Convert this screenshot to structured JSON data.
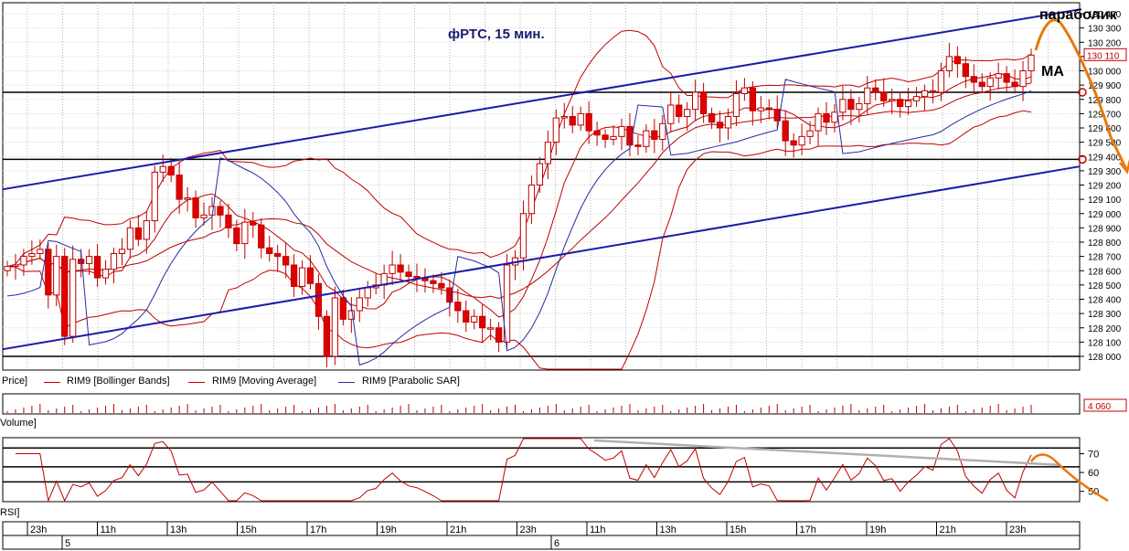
{
  "chart_data": [
    {
      "type": "candlestick",
      "title": "фРТС,  15 мин.",
      "annotations": [
        "параболик",
        "MA"
      ],
      "ylim": [
        127930,
        130450
      ],
      "y_ticks": [
        "130 400",
        "130 300",
        "130 200",
        "130 100",
        "130 000",
        "129 900",
        "129 800",
        "129 700",
        "129 600",
        "129 500",
        "129 400",
        "129 300",
        "129 200",
        "129 100",
        "129 000",
        "128 900",
        "128 800",
        "128 700",
        "128 600",
        "128 500",
        "128 400",
        "128 300",
        "128 200",
        "128 100",
        "128 000"
      ],
      "y_tick_values": [
        130400,
        130300,
        130200,
        130100,
        130000,
        129900,
        129800,
        129700,
        129600,
        129500,
        129400,
        129300,
        129200,
        129100,
        129000,
        128900,
        128800,
        128700,
        128600,
        128500,
        128400,
        128300,
        128200,
        128100,
        128000
      ],
      "last_price_label": "130 110",
      "last_price": 130110,
      "horizontal_levels": [
        129850,
        129380,
        128000
      ],
      "trend_channel": {
        "upper": [
          [
            0,
            129170
          ],
          [
            147,
            130430
          ]
        ],
        "lower": [
          [
            0,
            128050
          ],
          [
            147,
            129330
          ]
        ]
      },
      "legend": [
        "Price]",
        "RIM9 [Bollinger Bands]",
        "RIM9 [Moving Average]",
        "RIM9 [Parabolic SAR]"
      ],
      "colors": {
        "up": "#ffffff",
        "down": "#e00000",
        "bollinger": "#c00000",
        "ma": "#c00000",
        "sar": "#2a2aa0",
        "channel": "#1a1aa8",
        "forecast": "#e8780a"
      },
      "close": [
        128630,
        128640,
        128700,
        128720,
        128750,
        128430,
        128700,
        128140,
        128680,
        128650,
        128700,
        128550,
        128610,
        128720,
        128750,
        128900,
        128820,
        128950,
        129290,
        129330,
        129270,
        129100,
        129110,
        128970,
        128990,
        129050,
        128990,
        128900,
        128790,
        128940,
        128920,
        128760,
        128720,
        128700,
        128640,
        128490,
        128620,
        128510,
        128280,
        128000,
        128410,
        128260,
        128320,
        128410,
        128480,
        128500,
        128580,
        128640,
        128590,
        128560,
        128550,
        128530,
        128510,
        128480,
        128380,
        128320,
        128240,
        128280,
        128200,
        128200,
        128100,
        128640,
        128690,
        129000,
        129200,
        129350,
        129500,
        129670,
        129680,
        129620,
        129700,
        129580,
        129550,
        129520,
        129540,
        129610,
        129480,
        129470,
        129580,
        129520,
        129630,
        129760,
        129680,
        129730,
        129850,
        129700,
        129640,
        129600,
        129680,
        129840,
        129880,
        129720,
        129740,
        129730,
        129650,
        129510,
        129480,
        129540,
        129580,
        129700,
        129640,
        129710,
        129800,
        129730,
        129770,
        129880,
        129850,
        129790,
        129800,
        129750,
        129790,
        129820,
        129860,
        129850,
        130000,
        130100,
        130050,
        129960,
        129920,
        129890,
        129950,
        129980,
        129920,
        129890,
        130000,
        130110
      ],
      "volume_label": "4 060",
      "rsi_ticks": [
        "70",
        "60",
        "50"
      ],
      "rsi_levels": [
        73,
        63,
        55
      ],
      "time_labels": [
        "23h",
        "11h",
        "13h",
        "15h",
        "17h",
        "19h",
        "21h",
        "23h",
        "11h",
        "13h",
        "15h",
        "17h",
        "19h",
        "21h",
        "23h"
      ],
      "date_labels": [
        "5",
        "6"
      ],
      "panel_labels": [
        "Volume]",
        "RSI]"
      ]
    }
  ]
}
